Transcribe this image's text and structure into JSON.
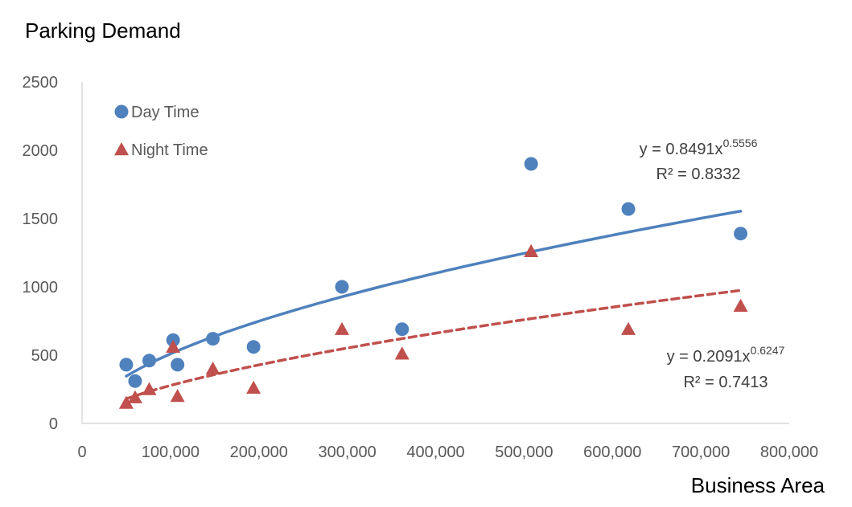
{
  "chart_data": {
    "type": "scatter",
    "title": "",
    "ylabel": "Parking Demand",
    "xlabel": "Business Area",
    "xlim": [
      0,
      800000
    ],
    "ylim": [
      0,
      2500
    ],
    "x_ticks": [
      0,
      100000,
      200000,
      300000,
      400000,
      500000,
      600000,
      700000,
      800000
    ],
    "x_tick_labels": [
      "0",
      "100,000",
      "200,000",
      "300,000",
      "400,000",
      "500,000",
      "600,000",
      "700,000",
      "800,000"
    ],
    "y_ticks": [
      0,
      500,
      1000,
      1500,
      2000,
      2500
    ],
    "y_tick_labels": [
      "0",
      "500",
      "1000",
      "1500",
      "2000",
      "2500"
    ],
    "grid": false,
    "legend_position": "top-left",
    "series": [
      {
        "name": "Day Time",
        "marker": "circle",
        "color": "#4F81BD",
        "trendline_style": "solid",
        "x": [
          50000,
          60000,
          76000,
          103000,
          108000,
          148000,
          194000,
          294000,
          362000,
          508000,
          618000,
          745000
        ],
        "y": [
          430,
          310,
          460,
          610,
          430,
          620,
          560,
          1000,
          690,
          1900,
          1570,
          1390
        ],
        "trendline": {
          "type": "power",
          "a": 0.8491,
          "b": 0.5556,
          "x_range": [
            50000,
            745000
          ],
          "equation": "y = 0.8491x",
          "exponent": "0.5556",
          "r2": "R² = 0.8332"
        }
      },
      {
        "name": "Night Time",
        "marker": "triangle",
        "color": "#C0504D",
        "trendline_style": "dashed",
        "x": [
          50000,
          60000,
          76000,
          103000,
          108000,
          148000,
          194000,
          294000,
          362000,
          508000,
          618000,
          745000
        ],
        "y": [
          150,
          190,
          250,
          560,
          200,
          400,
          260,
          690,
          510,
          1260,
          690,
          860
        ],
        "trendline": {
          "type": "power",
          "a": 0.2091,
          "b": 0.6247,
          "x_range": [
            50000,
            745000
          ],
          "equation": "y = 0.2091x",
          "exponent": "0.6247",
          "r2": "R² = 0.7413"
        }
      }
    ]
  }
}
